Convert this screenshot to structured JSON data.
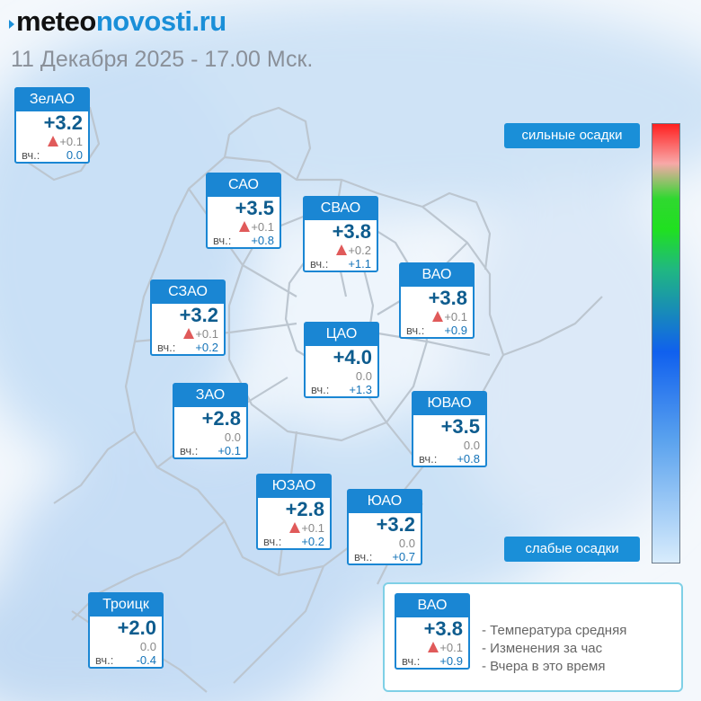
{
  "header": {
    "logo_part1": "meteo",
    "logo_part2": "novosti.ru",
    "subtitle": "11 Декабря 2025 - 17.00 Мск."
  },
  "colors": {
    "card_header": "#1a86d3",
    "temp_text": "#0e5c8e",
    "rise_marker": "#e05a5a",
    "yesterday_value": "#1473b8",
    "legend_border": "#7fd0e6"
  },
  "labels": {
    "yesterday_prefix": "вч.:"
  },
  "scale": {
    "top_label": "сильные осадки",
    "bottom_label": "слабые осадки"
  },
  "districts": [
    {
      "name": "ЗелАО",
      "temp": "+3.2",
      "change": "+0.1",
      "yesterday": "0.0",
      "rising": true
    },
    {
      "name": "САО",
      "temp": "+3.5",
      "change": "+0.1",
      "yesterday": "+0.8",
      "rising": true
    },
    {
      "name": "СВАО",
      "temp": "+3.8",
      "change": "+0.2",
      "yesterday": "+1.1",
      "rising": true
    },
    {
      "name": "ВАО",
      "temp": "+3.8",
      "change": "+0.1",
      "yesterday": "+0.9",
      "rising": true
    },
    {
      "name": "СЗАО",
      "temp": "+3.2",
      "change": "+0.1",
      "yesterday": "+0.2",
      "rising": true
    },
    {
      "name": "ЦАО",
      "temp": "+4.0",
      "change": "0.0",
      "yesterday": "+1.3",
      "rising": false
    },
    {
      "name": "ЗАО",
      "temp": "+2.8",
      "change": "0.0",
      "yesterday": "+0.1",
      "rising": false
    },
    {
      "name": "ЮВАО",
      "temp": "+3.5",
      "change": "0.0",
      "yesterday": "+0.8",
      "rising": false
    },
    {
      "name": "ЮЗАО",
      "temp": "+2.8",
      "change": "+0.1",
      "yesterday": "+0.2",
      "rising": true
    },
    {
      "name": "ЮАО",
      "temp": "+3.2",
      "change": "0.0",
      "yesterday": "+0.7",
      "rising": false
    },
    {
      "name": "Троицк",
      "temp": "+2.0",
      "change": "0.0",
      "yesterday": "-0.4",
      "rising": false
    }
  ],
  "legend": {
    "name": "ВАО",
    "temp": "+3.8",
    "change": "+0.1",
    "yesterday": "+0.9",
    "lines": [
      "- Температура средняя",
      "- Изменения за час",
      "- Вчера в это время"
    ]
  }
}
